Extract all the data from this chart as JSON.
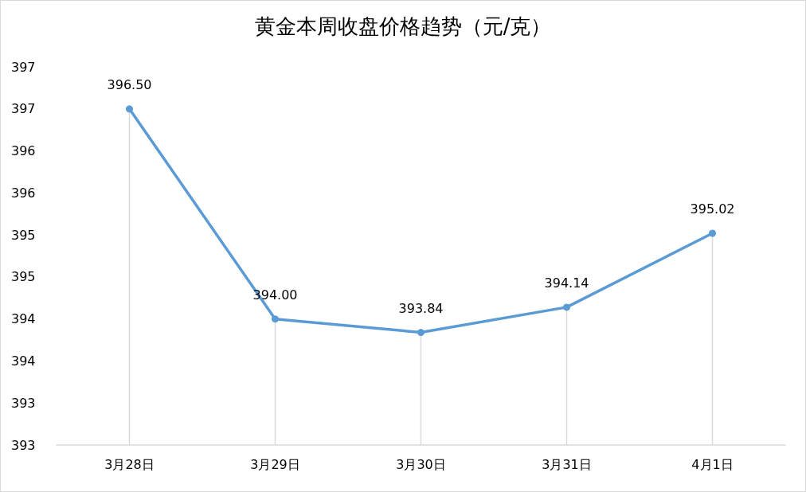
{
  "chart_data": {
    "type": "line",
    "title": "黄金本周收盘价格趋势（元/克）",
    "categories": [
      "3月28日",
      "3月29日",
      "3月30日",
      "3月31日",
      "4月1日"
    ],
    "series": [
      {
        "color": "#5b9bd5",
        "values": [
          396.5,
          394.0,
          393.84,
          394.14,
          395.02
        ],
        "value_labels": [
          "396.50",
          "394.00",
          "393.84",
          "394.14",
          "395.02"
        ],
        "errors": [
          [
            392.5,
            396.5
          ],
          [
            392.5,
            394.0
          ],
          [
            392.5,
            393.84
          ],
          [
            392.5,
            394.14
          ],
          [
            392.5,
            395.02
          ]
        ]
      }
    ],
    "ylim": [
      392.5,
      397
    ],
    "yticks": [
      {
        "value": 392.5,
        "label": "393"
      },
      {
        "value": 393,
        "label": "393"
      },
      {
        "value": 393.5,
        "label": "394"
      },
      {
        "value": 394,
        "label": "394"
      },
      {
        "value": 394.5,
        "label": "395"
      },
      {
        "value": 395,
        "label": "395"
      },
      {
        "value": 395.5,
        "label": "396"
      },
      {
        "value": 396,
        "label": "396"
      },
      {
        "value": 396.5,
        "label": "397"
      },
      {
        "value": 397,
        "label": "397"
      }
    ],
    "marker": "circle",
    "line_style": "solid"
  }
}
